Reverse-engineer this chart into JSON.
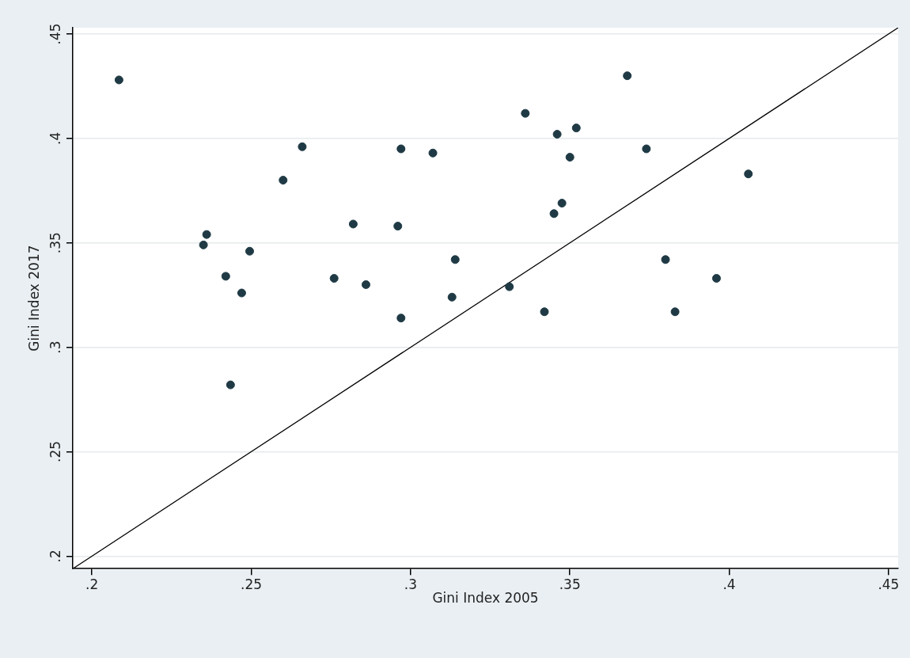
{
  "chart_data": {
    "type": "scatter",
    "xlabel": "Gini Index 2005",
    "ylabel": "Gini Index 2017",
    "xlim": [
      0.194,
      0.453
    ],
    "ylim": [
      0.194,
      0.453
    ],
    "xticks": [
      {
        "value": 0.2,
        "label": ".2"
      },
      {
        "value": 0.25,
        "label": ".25"
      },
      {
        "value": 0.3,
        "label": ".3"
      },
      {
        "value": 0.35,
        "label": ".35"
      },
      {
        "value": 0.4,
        "label": ".4"
      },
      {
        "value": 0.45,
        "label": ".45"
      }
    ],
    "yticks": [
      {
        "value": 0.2,
        "label": ".2"
      },
      {
        "value": 0.25,
        "label": ".25"
      },
      {
        "value": 0.3,
        "label": ".3"
      },
      {
        "value": 0.35,
        "label": ".35"
      },
      {
        "value": 0.4,
        "label": ".4"
      },
      {
        "value": 0.45,
        "label": ".45"
      }
    ],
    "grid": "y",
    "legend": false,
    "marker": "circle",
    "series": [
      {
        "color": "#1f3a45",
        "x": [
          0.2085,
          0.266,
          0.26,
          0.297,
          0.307,
          0.236,
          0.235,
          0.2495,
          0.242,
          0.247,
          0.282,
          0.296,
          0.276,
          0.286,
          0.297,
          0.314,
          0.313,
          0.2435,
          0.368,
          0.336,
          0.346,
          0.352,
          0.35,
          0.374,
          0.406,
          0.3475,
          0.345,
          0.38,
          0.396,
          0.331,
          0.342,
          0.383
        ],
        "values": [
          0.428,
          0.396,
          0.38,
          0.395,
          0.393,
          0.354,
          0.349,
          0.346,
          0.334,
          0.326,
          0.359,
          0.358,
          0.333,
          0.33,
          0.314,
          0.342,
          0.324,
          0.282,
          0.43,
          0.412,
          0.402,
          0.405,
          0.391,
          0.395,
          0.383,
          0.369,
          0.364,
          0.342,
          0.333,
          0.329,
          0.317,
          0.317
        ]
      },
      {
        "type": "line",
        "color": "#000000",
        "marker": "none",
        "line_style": "solid",
        "x": [
          0.194,
          0.453
        ],
        "values": [
          0.194,
          0.453
        ]
      }
    ]
  }
}
